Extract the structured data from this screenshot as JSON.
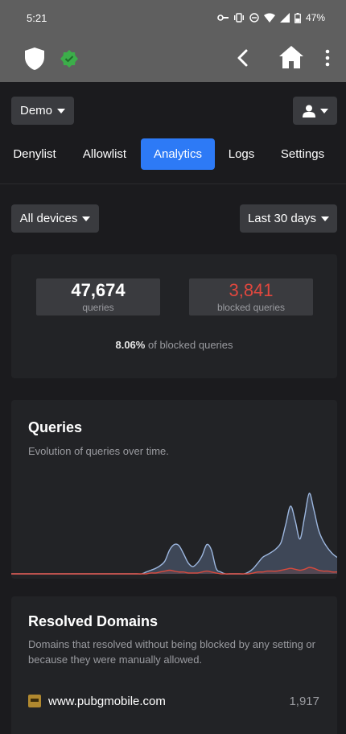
{
  "status_bar": {
    "time": "5:21",
    "battery": "47%"
  },
  "profile_selector": {
    "label": "Demo"
  },
  "tabs": [
    {
      "label": "Denylist",
      "active": false
    },
    {
      "label": "Allowlist",
      "active": false
    },
    {
      "label": "Analytics",
      "active": true
    },
    {
      "label": "Logs",
      "active": false
    },
    {
      "label": "Settings",
      "active": false
    }
  ],
  "filters": {
    "devices": "All devices",
    "range": "Last 30 days"
  },
  "summary": {
    "queries": "47,674",
    "queries_label": "queries",
    "blocked": "3,841",
    "blocked_label": "blocked queries",
    "percent": "8.06%",
    "percent_label": "of blocked queries"
  },
  "queries_card": {
    "title": "Queries",
    "subtitle": "Evolution of queries over time."
  },
  "chart_data": {
    "type": "area",
    "title": "Queries",
    "series": [
      {
        "name": "queries",
        "values": [
          0,
          0,
          0,
          0,
          0,
          0,
          0,
          0,
          0,
          0,
          0,
          0,
          0,
          0,
          0,
          0,
          0,
          0,
          0,
          0,
          0,
          0,
          0,
          0,
          0,
          0,
          0,
          0,
          0,
          2,
          4,
          6,
          9,
          14,
          26,
          32,
          31,
          22,
          12,
          8,
          12,
          20,
          32,
          26,
          6,
          2,
          0,
          0,
          0,
          0,
          0,
          2,
          6,
          12,
          18,
          21,
          24,
          28,
          35,
          55,
          74,
          58,
          38,
          62,
          88,
          70,
          48,
          36,
          28,
          22,
          18
        ]
      },
      {
        "name": "blocked",
        "values": [
          0,
          0,
          0,
          0,
          0,
          0,
          0,
          0,
          0,
          0,
          0,
          0,
          0,
          0,
          0,
          0,
          0,
          0,
          0,
          0,
          0,
          0,
          0,
          0,
          0,
          0,
          0,
          0,
          0,
          0,
          1,
          1,
          2,
          3,
          4,
          3,
          2,
          2,
          1,
          1,
          1,
          2,
          3,
          2,
          1,
          0,
          0,
          0,
          0,
          0,
          0,
          0,
          1,
          2,
          2,
          3,
          3,
          3,
          4,
          5,
          6,
          5,
          4,
          5,
          7,
          6,
          4,
          3,
          3,
          2,
          2
        ]
      }
    ],
    "colors": {
      "queries": "#9db7df",
      "blocked": "#d94a3d"
    }
  },
  "resolved_card": {
    "title": "Resolved Domains",
    "subtitle": "Domains that resolved without being blocked by any setting or because they were manually allowed.",
    "items": [
      {
        "domain": "www.pubgmobile.com",
        "count": "1,917"
      }
    ]
  }
}
